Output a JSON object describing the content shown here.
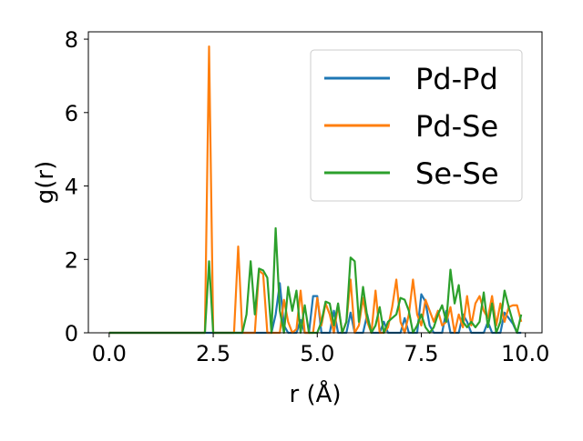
{
  "chart_data": {
    "type": "line",
    "xlabel": "r (Å)",
    "ylabel": "g(r)",
    "xlim": [
      -0.5,
      10.4
    ],
    "ylim": [
      0,
      8.2
    ],
    "xticks": [
      "0.0",
      "2.5",
      "5.0",
      "7.5",
      "10.0"
    ],
    "yticks": [
      "0",
      "2",
      "4",
      "6",
      "8"
    ],
    "grid": false,
    "legend_position": "top-right",
    "series": [
      {
        "name": "Pd-Pd",
        "color": "#1f77b4",
        "points": [
          [
            0.0,
            0
          ],
          [
            2.3,
            0
          ],
          [
            2.4,
            0
          ],
          [
            2.5,
            0
          ],
          [
            3.9,
            0
          ],
          [
            4.0,
            0.5
          ],
          [
            4.1,
            1.35
          ],
          [
            4.2,
            0.2
          ],
          [
            4.3,
            0
          ],
          [
            4.5,
            0
          ],
          [
            4.6,
            0.35
          ],
          [
            4.7,
            0
          ],
          [
            4.8,
            0
          ],
          [
            4.9,
            1.0
          ],
          [
            5.0,
            1.0
          ],
          [
            5.1,
            0
          ],
          [
            5.3,
            0
          ],
          [
            5.4,
            0.6
          ],
          [
            5.5,
            0
          ],
          [
            5.7,
            0
          ],
          [
            5.8,
            0.55
          ],
          [
            5.9,
            0
          ],
          [
            6.1,
            0
          ],
          [
            6.2,
            0.5
          ],
          [
            6.3,
            0
          ],
          [
            6.5,
            0
          ],
          [
            6.6,
            0.3
          ],
          [
            6.7,
            0
          ],
          [
            7.0,
            0
          ],
          [
            7.1,
            0.4
          ],
          [
            7.2,
            0
          ],
          [
            7.4,
            0
          ],
          [
            7.5,
            1.05
          ],
          [
            7.6,
            0.85
          ],
          [
            7.7,
            0.2
          ],
          [
            7.8,
            0
          ],
          [
            8.0,
            0
          ],
          [
            8.1,
            0.6
          ],
          [
            8.2,
            0
          ],
          [
            8.4,
            0
          ],
          [
            8.5,
            0.5
          ],
          [
            8.6,
            0.3
          ],
          [
            8.7,
            0
          ],
          [
            9.0,
            0
          ],
          [
            9.1,
            0.3
          ],
          [
            9.2,
            0
          ],
          [
            9.4,
            0
          ],
          [
            9.5,
            0.55
          ],
          [
            9.6,
            0.4
          ],
          [
            9.7,
            0.25
          ],
          [
            9.8,
            0
          ],
          [
            9.9,
            0
          ]
        ]
      },
      {
        "name": "Pd-Se",
        "color": "#ff7f0e",
        "points": [
          [
            0.0,
            0
          ],
          [
            2.3,
            0
          ],
          [
            2.4,
            7.8
          ],
          [
            2.5,
            0
          ],
          [
            2.6,
            0
          ],
          [
            3.0,
            0
          ],
          [
            3.1,
            2.35
          ],
          [
            3.2,
            0
          ],
          [
            3.5,
            0
          ],
          [
            3.6,
            1.7
          ],
          [
            3.7,
            1.6
          ],
          [
            3.8,
            0
          ],
          [
            4.1,
            0
          ],
          [
            4.2,
            0.9
          ],
          [
            4.3,
            0.3
          ],
          [
            4.4,
            0
          ],
          [
            4.5,
            0.1
          ],
          [
            4.6,
            1.15
          ],
          [
            4.7,
            0
          ],
          [
            4.9,
            0
          ],
          [
            5.0,
            0.95
          ],
          [
            5.1,
            0.2
          ],
          [
            5.2,
            0.8
          ],
          [
            5.3,
            0.5
          ],
          [
            5.4,
            0
          ],
          [
            5.5,
            0.75
          ],
          [
            5.6,
            0
          ],
          [
            5.7,
            0.3
          ],
          [
            5.8,
            1.45
          ],
          [
            5.9,
            0
          ],
          [
            6.0,
            0.2
          ],
          [
            6.1,
            0.95
          ],
          [
            6.2,
            0.3
          ],
          [
            6.3,
            0
          ],
          [
            6.4,
            1.15
          ],
          [
            6.5,
            0
          ],
          [
            6.6,
            0
          ],
          [
            6.7,
            0.15
          ],
          [
            6.8,
            0.7
          ],
          [
            6.9,
            1.45
          ],
          [
            7.0,
            0.3
          ],
          [
            7.1,
            0
          ],
          [
            7.2,
            0.5
          ],
          [
            7.3,
            1.45
          ],
          [
            7.4,
            0.5
          ],
          [
            7.5,
            0.2
          ],
          [
            7.6,
            0.9
          ],
          [
            7.7,
            0.6
          ],
          [
            7.8,
            0.3
          ],
          [
            7.9,
            0.6
          ],
          [
            8.0,
            0.2
          ],
          [
            8.1,
            0.3
          ],
          [
            8.2,
            0.7
          ],
          [
            8.3,
            0
          ],
          [
            8.4,
            0.5
          ],
          [
            8.5,
            0.15
          ],
          [
            8.6,
            1.0
          ],
          [
            8.7,
            0.2
          ],
          [
            8.8,
            0.8
          ],
          [
            8.9,
            1.0
          ],
          [
            9.0,
            0.6
          ],
          [
            9.1,
            0.4
          ],
          [
            9.2,
            1.0
          ],
          [
            9.3,
            0.2
          ],
          [
            9.4,
            0.8
          ],
          [
            9.5,
            0.3
          ],
          [
            9.6,
            0.7
          ],
          [
            9.7,
            0.75
          ],
          [
            9.8,
            0.75
          ],
          [
            9.9,
            0.3
          ]
        ]
      },
      {
        "name": "Se-Se",
        "color": "#2ca02c",
        "points": [
          [
            0.0,
            0
          ],
          [
            2.3,
            0
          ],
          [
            2.4,
            1.95
          ],
          [
            2.5,
            0
          ],
          [
            3.2,
            0
          ],
          [
            3.3,
            0.5
          ],
          [
            3.4,
            1.95
          ],
          [
            3.5,
            0.5
          ],
          [
            3.6,
            1.75
          ],
          [
            3.7,
            1.7
          ],
          [
            3.8,
            1.5
          ],
          [
            3.9,
            0
          ],
          [
            4.0,
            2.85
          ],
          [
            4.1,
            0.6
          ],
          [
            4.2,
            0
          ],
          [
            4.3,
            1.25
          ],
          [
            4.4,
            0.6
          ],
          [
            4.5,
            1.15
          ],
          [
            4.6,
            0
          ],
          [
            4.7,
            0.75
          ],
          [
            4.8,
            0
          ],
          [
            5.0,
            0
          ],
          [
            5.1,
            0.3
          ],
          [
            5.2,
            0.85
          ],
          [
            5.3,
            0.8
          ],
          [
            5.4,
            0.2
          ],
          [
            5.5,
            0.8
          ],
          [
            5.6,
            0
          ],
          [
            5.7,
            0.3
          ],
          [
            5.8,
            2.05
          ],
          [
            5.9,
            1.95
          ],
          [
            6.0,
            0.3
          ],
          [
            6.1,
            1.25
          ],
          [
            6.2,
            0.45
          ],
          [
            6.3,
            0
          ],
          [
            6.4,
            0.2
          ],
          [
            6.5,
            0.7
          ],
          [
            6.6,
            0
          ],
          [
            6.7,
            0.3
          ],
          [
            6.8,
            0.4
          ],
          [
            6.9,
            0.5
          ],
          [
            7.0,
            0.95
          ],
          [
            7.1,
            0.9
          ],
          [
            7.2,
            0.6
          ],
          [
            7.3,
            0
          ],
          [
            7.4,
            0.2
          ],
          [
            7.5,
            0.5
          ],
          [
            7.6,
            0.15
          ],
          [
            7.7,
            0
          ],
          [
            7.8,
            0.15
          ],
          [
            7.9,
            0.5
          ],
          [
            8.0,
            0.75
          ],
          [
            8.1,
            0.3
          ],
          [
            8.2,
            1.72
          ],
          [
            8.3,
            0.8
          ],
          [
            8.4,
            1.3
          ],
          [
            8.5,
            0.3
          ],
          [
            8.6,
            0.15
          ],
          [
            8.7,
            0.3
          ],
          [
            8.8,
            0.15
          ],
          [
            8.9,
            0.3
          ],
          [
            9.0,
            1.1
          ],
          [
            9.1,
            0.15
          ],
          [
            9.2,
            0.8
          ],
          [
            9.3,
            0
          ],
          [
            9.4,
            0.3
          ],
          [
            9.5,
            1.15
          ],
          [
            9.6,
            0.7
          ],
          [
            9.7,
            0.3
          ],
          [
            9.8,
            0
          ],
          [
            9.9,
            0.5
          ]
        ]
      }
    ]
  }
}
